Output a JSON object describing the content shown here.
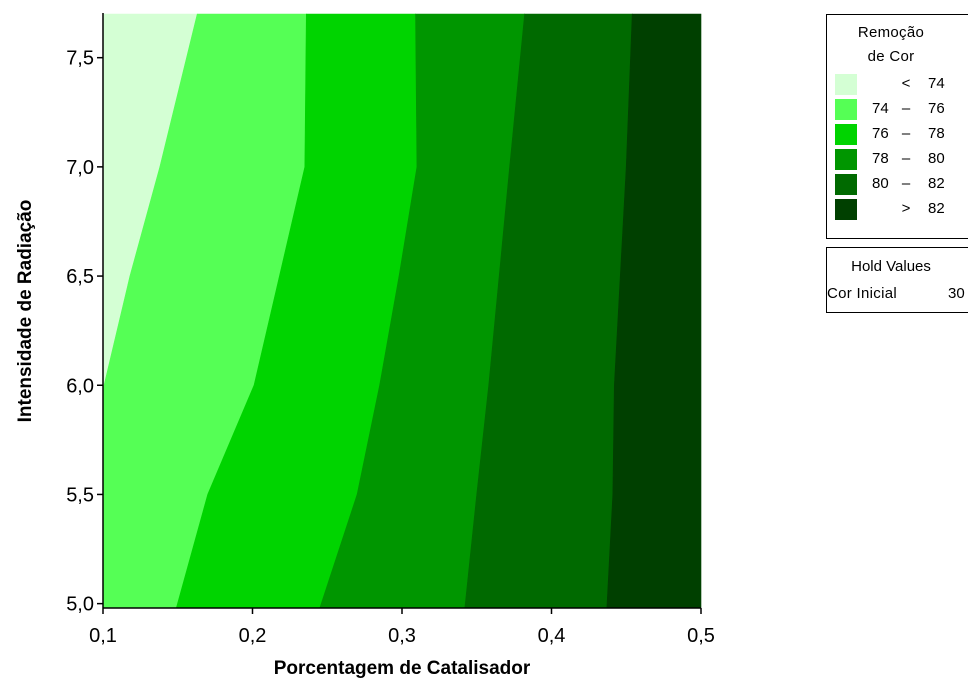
{
  "chart_data": {
    "type": "contour",
    "xlabel": "Porcentagem de Catalisador",
    "ylabel": "Intensidade de Radiação",
    "xlim": [
      0.1,
      0.5
    ],
    "ylim": [
      4.98,
      7.7
    ],
    "x_ticks": [
      "0,1",
      "0,2",
      "0,3",
      "0,4",
      "0,5"
    ],
    "x_tick_values": [
      0.1,
      0.2,
      0.3,
      0.4,
      0.5
    ],
    "y_ticks": [
      "5,0",
      "5,5",
      "6,0",
      "6,5",
      "7,0",
      "7,5"
    ],
    "y_tick_values": [
      5.0,
      5.5,
      6.0,
      6.5,
      7.0,
      7.5
    ],
    "legend_title": [
      "Remoção",
      "de Cor"
    ],
    "contour_levels": [
      74,
      76,
      78,
      80,
      82
    ],
    "boundaries": [
      {
        "level": 74,
        "points": [
          [
            0.1,
            5.98
          ],
          [
            0.118,
            6.5
          ],
          [
            0.138,
            7.0
          ],
          [
            0.163,
            7.7
          ]
        ]
      },
      {
        "level": 76,
        "points": [
          [
            0.149,
            4.98
          ],
          [
            0.17,
            5.5
          ],
          [
            0.201,
            6.0
          ],
          [
            0.235,
            7.0
          ],
          [
            0.236,
            7.7
          ]
        ]
      },
      {
        "level": 78,
        "points": [
          [
            0.245,
            4.98
          ],
          [
            0.27,
            5.5
          ],
          [
            0.285,
            6.0
          ],
          [
            0.298,
            6.5
          ],
          [
            0.31,
            7.0
          ],
          [
            0.309,
            7.7
          ]
        ]
      },
      {
        "level": 80,
        "points": [
          [
            0.342,
            4.98
          ],
          [
            0.35,
            5.5
          ],
          [
            0.358,
            6.0
          ],
          [
            0.372,
            7.0
          ],
          [
            0.382,
            7.7
          ]
        ]
      },
      {
        "level": 82,
        "points": [
          [
            0.437,
            4.98
          ],
          [
            0.441,
            5.5
          ],
          [
            0.442,
            6.0
          ],
          [
            0.45,
            7.0
          ],
          [
            0.454,
            7.7
          ]
        ]
      }
    ],
    "legend": [
      {
        "lo": "",
        "op": "<",
        "hi": "74",
        "color": "#d4ffd4"
      },
      {
        "lo": "74",
        "op": "–",
        "hi": "76",
        "color": "#55ff55"
      },
      {
        "lo": "76",
        "op": "–",
        "hi": "78",
        "color": "#00d400"
      },
      {
        "lo": "78",
        "op": "–",
        "hi": "80",
        "color": "#009600"
      },
      {
        "lo": "80",
        "op": "–",
        "hi": "82",
        "color": "#006a00"
      },
      {
        "lo": "",
        "op": ">",
        "hi": "82",
        "color": "#004000"
      }
    ],
    "hold_values": {
      "title": "Hold Values",
      "label": "Cor Inicial",
      "value": "30"
    }
  }
}
